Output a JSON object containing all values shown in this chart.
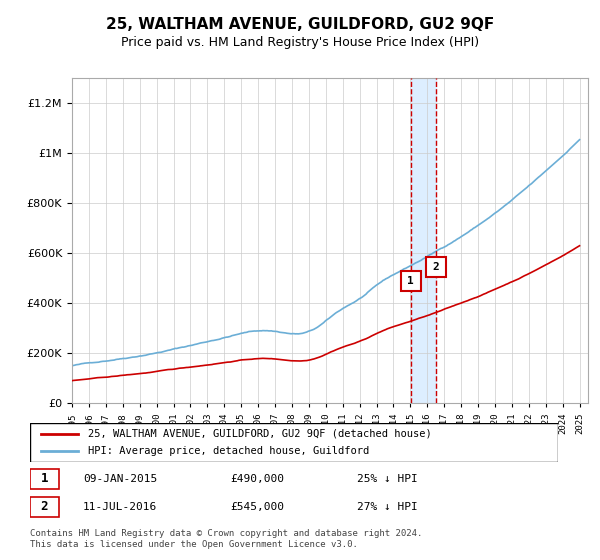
{
  "title": "25, WALTHAM AVENUE, GUILDFORD, GU2 9QF",
  "subtitle": "Price paid vs. HM Land Registry's House Price Index (HPI)",
  "legend_line1": "25, WALTHAM AVENUE, GUILDFORD, GU2 9QF (detached house)",
  "legend_line2": "HPI: Average price, detached house, Guildford",
  "transaction1_label": "1",
  "transaction1_date": "09-JAN-2015",
  "transaction1_price": "£490,000",
  "transaction1_hpi": "25% ↓ HPI",
  "transaction2_label": "2",
  "transaction2_date": "11-JUL-2016",
  "transaction2_price": "£545,000",
  "transaction2_hpi": "27% ↓ HPI",
  "footer": "Contains HM Land Registry data © Crown copyright and database right 2024.\nThis data is licensed under the Open Government Licence v3.0.",
  "hpi_color": "#6baed6",
  "price_color": "#cc0000",
  "highlight_color": "#ddeeff",
  "marker_color": "#cc0000",
  "ymin": 0,
  "ymax": 1300000,
  "xmin": 1995.0,
  "xmax": 2025.5
}
